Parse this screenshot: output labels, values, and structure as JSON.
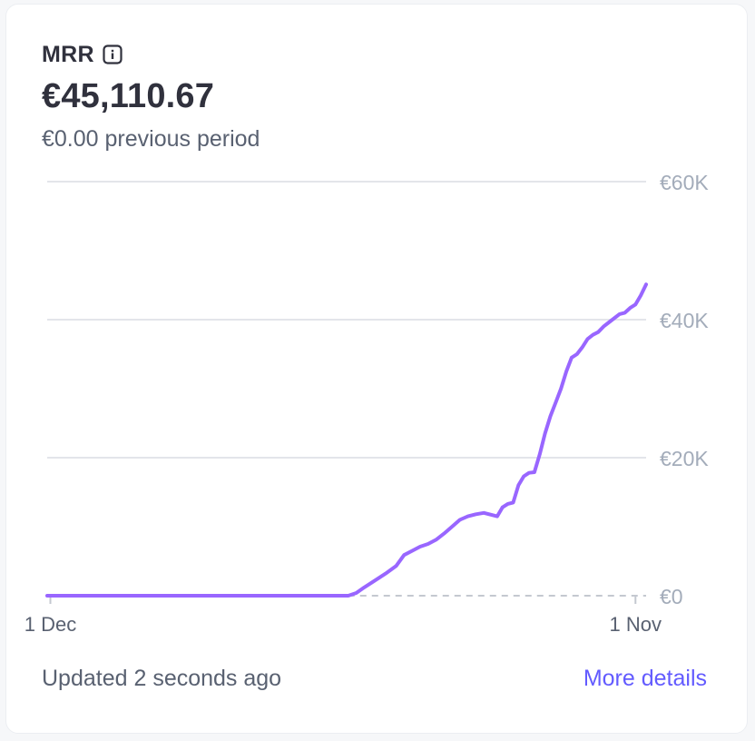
{
  "metric": {
    "title": "MRR",
    "value": "€45,110.67",
    "previous": "€0.00 previous period",
    "info_icon": "info-icon"
  },
  "footer": {
    "updated": "Updated 2 seconds ago",
    "link": "More details"
  },
  "colors": {
    "line": "#9966ff",
    "grid": "#e3e5ea",
    "baseline_dashed": "#c4c8d0",
    "tick_text": "#a3acba",
    "link": "#635bff"
  },
  "chart_data": {
    "type": "line",
    "title": "MRR",
    "x_tick_labels": [
      "1 Dec",
      "1 Nov"
    ],
    "y_tick_labels": [
      "€60K",
      "€40K",
      "€20K",
      "€0"
    ],
    "y_ticks": [
      60000,
      40000,
      20000,
      0
    ],
    "ylim": [
      0,
      60000
    ],
    "xlim": [
      -0.06,
      11.2
    ],
    "grid": true,
    "x_label_positions": [
      0,
      11
    ],
    "series": [
      {
        "values": [
          [
            -0.06,
            0
          ],
          [
            0.5,
            0
          ],
          [
            1,
            0
          ],
          [
            2,
            0
          ],
          [
            3,
            0
          ],
          [
            4,
            0
          ],
          [
            5,
            0
          ],
          [
            5.6,
            0
          ],
          [
            5.75,
            400
          ],
          [
            5.9,
            1200
          ],
          [
            6.1,
            2200
          ],
          [
            6.3,
            3200
          ],
          [
            6.5,
            4300
          ],
          [
            6.65,
            5900
          ],
          [
            6.8,
            6500
          ],
          [
            6.95,
            7100
          ],
          [
            7.1,
            7500
          ],
          [
            7.25,
            8100
          ],
          [
            7.4,
            9000
          ],
          [
            7.55,
            10000
          ],
          [
            7.7,
            11000
          ],
          [
            7.85,
            11500
          ],
          [
            8.0,
            11800
          ],
          [
            8.15,
            12000
          ],
          [
            8.3,
            11700
          ],
          [
            8.4,
            11500
          ],
          [
            8.5,
            12800
          ],
          [
            8.6,
            13300
          ],
          [
            8.7,
            13500
          ],
          [
            8.8,
            16000
          ],
          [
            8.9,
            17300
          ],
          [
            9.0,
            17800
          ],
          [
            9.1,
            17900
          ],
          [
            9.2,
            20500
          ],
          [
            9.3,
            23500
          ],
          [
            9.4,
            26000
          ],
          [
            9.5,
            28000
          ],
          [
            9.6,
            30000
          ],
          [
            9.7,
            32500
          ],
          [
            9.8,
            34500
          ],
          [
            9.9,
            35000
          ],
          [
            10.0,
            36000
          ],
          [
            10.1,
            37200
          ],
          [
            10.2,
            37800
          ],
          [
            10.3,
            38200
          ],
          [
            10.4,
            39000
          ],
          [
            10.5,
            39600
          ],
          [
            10.6,
            40200
          ],
          [
            10.7,
            40800
          ],
          [
            10.8,
            41000
          ],
          [
            10.9,
            41700
          ],
          [
            11.0,
            42200
          ],
          [
            11.1,
            43500
          ],
          [
            11.2,
            45110
          ]
        ]
      }
    ],
    "previous_series_dashed": [
      [
        5.6,
        0
      ],
      [
        11.2,
        0
      ]
    ]
  }
}
